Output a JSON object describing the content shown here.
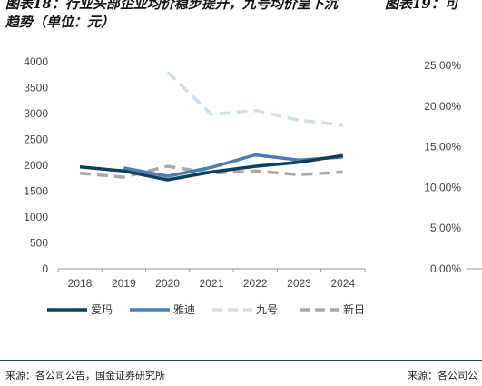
{
  "header": {
    "left_title_line1": "图表18：行业头部企业均价稳步提升，九号均价呈下沉",
    "left_title_line2": "趋势（单位：元）",
    "right_title": "图表19：可"
  },
  "footer": {
    "source_left": "来源：各公司公告，国金证券研究所",
    "source_right": "来源：各公司公"
  },
  "chart_data": [
    {
      "type": "line",
      "title": "",
      "xlabel": "",
      "ylabel": "",
      "x": [
        "2018",
        "2019",
        "2020",
        "2021",
        "2022",
        "2023",
        "2024"
      ],
      "y_ticks": [
        "0",
        "500",
        "1000",
        "1500",
        "2000",
        "2500",
        "3000",
        "3500",
        "4000"
      ],
      "ylim": [
        0,
        4000
      ],
      "grid": false,
      "legend_position": "bottom",
      "series": [
        {
          "name": "爱玛",
          "color": "#0f3d5e",
          "dash": "solid",
          "values": [
            1970,
            1890,
            1720,
            1870,
            1980,
            2060,
            2190
          ]
        },
        {
          "name": "雅迪",
          "color": "#4a7eb0",
          "dash": "solid",
          "values": [
            null,
            1950,
            1790,
            1960,
            2200,
            2100,
            2160
          ]
        },
        {
          "name": "九号",
          "color": "#cfdeea",
          "dash": "dashed",
          "values": [
            null,
            null,
            3800,
            2980,
            3060,
            2870,
            2780
          ]
        },
        {
          "name": "新日",
          "color": "#a8aaad",
          "dash": "dashed",
          "values": [
            1850,
            1770,
            1980,
            1850,
            1890,
            1820,
            1870
          ]
        }
      ]
    },
    {
      "type": "line",
      "title": "",
      "y_ticks": [
        "0.00%",
        "5.00%",
        "10.00%",
        "15.00%",
        "20.00%",
        "25.00%"
      ],
      "ylim": [
        0,
        25
      ],
      "series": []
    }
  ]
}
